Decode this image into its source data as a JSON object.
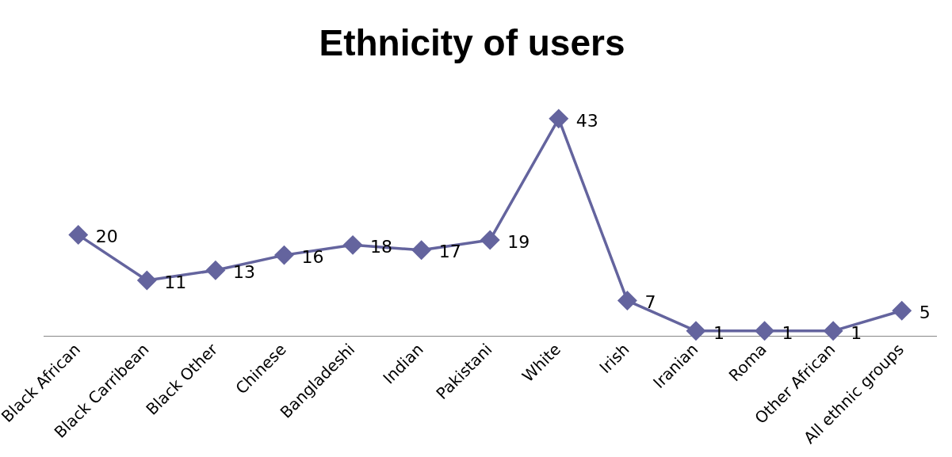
{
  "chart_data": {
    "type": "line",
    "title": "Ethnicity of users",
    "categories": [
      "Black African",
      "Black Carribean",
      "Black Other",
      "Chinese",
      "Bangladeshi",
      "Indian",
      "Pakistani",
      "White",
      "Irish",
      "Iranian",
      "Roma",
      "Other African",
      "All ethnic groups"
    ],
    "values": [
      20,
      11,
      13,
      16,
      18,
      17,
      19,
      43,
      7,
      1,
      1,
      1,
      5
    ],
    "color": "#64649e",
    "marker": "diamond",
    "line_style": "solid",
    "data_labels": true,
    "grid": false,
    "legend": false,
    "tick_labels": "x"
  }
}
